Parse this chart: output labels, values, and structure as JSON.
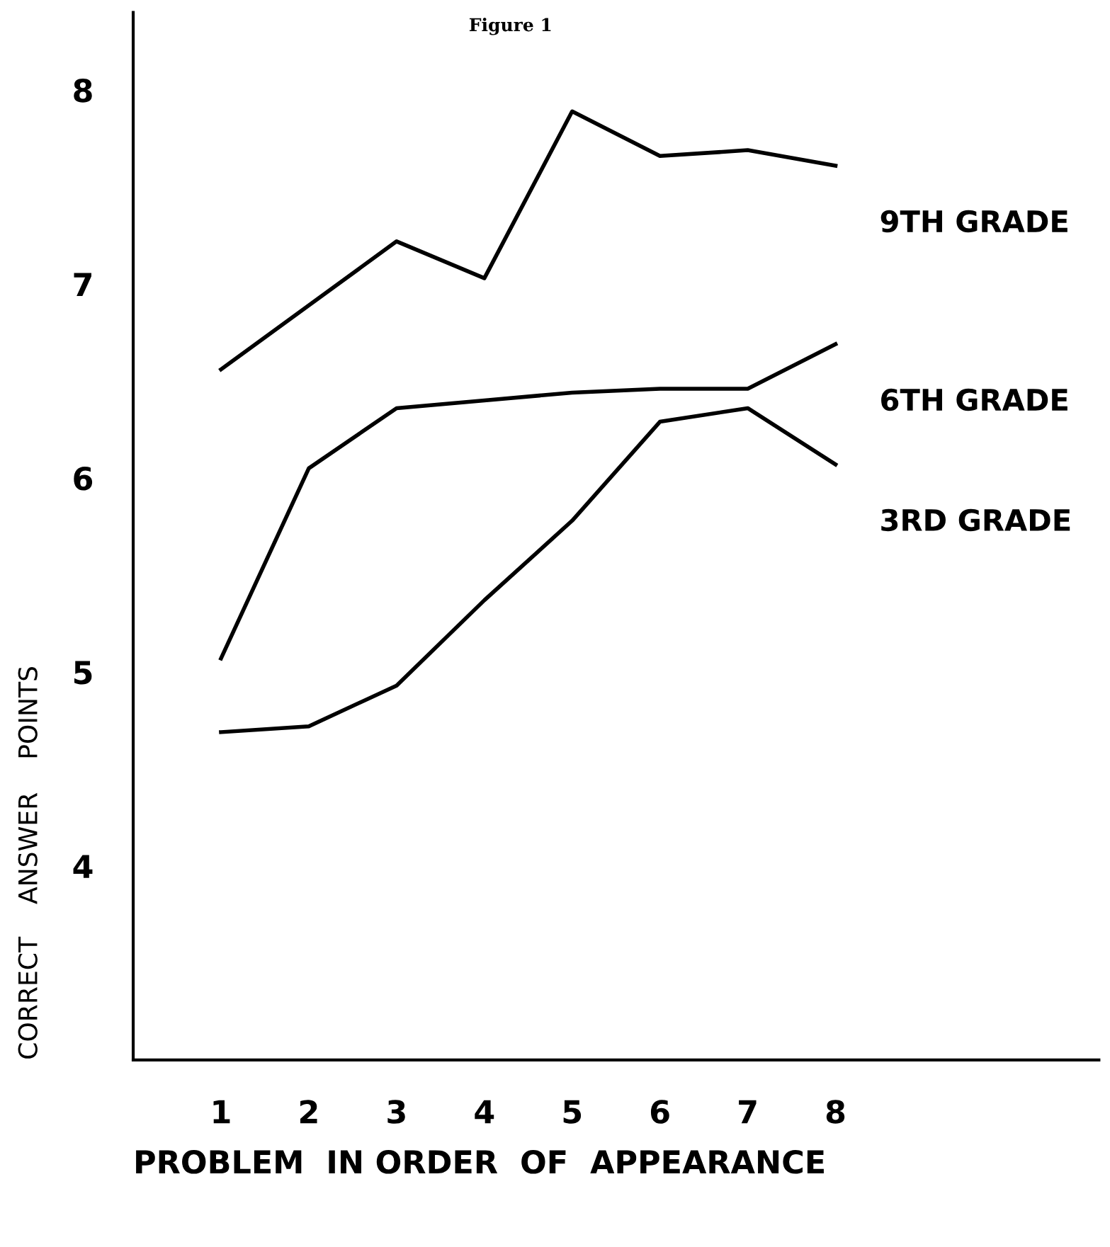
{
  "chart_data": {
    "type": "line",
    "title": "Figure 1",
    "xlabel": "PROBLEM  IN ORDER  OF  APPEARANCE",
    "ylabel": "CORRECT    ANSWER    POINTS",
    "x": [
      1,
      2,
      3,
      4,
      5,
      6,
      7,
      8
    ],
    "series": [
      {
        "name": "9TH GRADE",
        "color": "#000000",
        "values": [
          6.56,
          6.89,
          7.22,
          7.03,
          7.89,
          7.66,
          7.69,
          7.61
        ]
      },
      {
        "name": "6TH GRADE",
        "color": "#000000",
        "values": [
          5.07,
          6.05,
          6.36,
          6.4,
          6.44,
          6.46,
          6.46,
          6.69
        ]
      },
      {
        "name": "3RD GRADE",
        "color": "#000000",
        "values": [
          4.69,
          4.72,
          4.93,
          5.37,
          5.78,
          6.29,
          6.36,
          6.07
        ]
      }
    ],
    "xlim": [
      0,
      11
    ],
    "ylim": [
      3,
      8.4
    ],
    "xticks": [
      1,
      2,
      3,
      4,
      5,
      6,
      7,
      8
    ],
    "yticks": [
      4,
      5,
      6,
      7,
      8
    ],
    "grid": false,
    "legend": false,
    "marker": "none",
    "line_style": "solid"
  }
}
